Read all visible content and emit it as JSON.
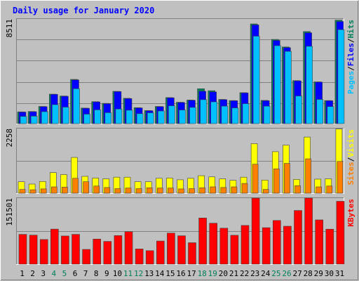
{
  "chart_data": {
    "type": "bar",
    "title": "Daily usage for January 2020",
    "categories": [
      "1",
      "2",
      "3",
      "4",
      "5",
      "6",
      "7",
      "8",
      "9",
      "10",
      "11",
      "12",
      "13",
      "14",
      "15",
      "16",
      "17",
      "18",
      "19",
      "20",
      "21",
      "22",
      "23",
      "24",
      "25",
      "26",
      "27",
      "28",
      "29",
      "30",
      "31"
    ],
    "weekend_days": [
      4,
      5,
      11,
      12,
      18,
      19,
      25,
      26
    ],
    "panels": [
      {
        "id": "hits-files-pages",
        "ymax": 8511,
        "ymax_label": "8511",
        "axis_labels": [
          "Pages",
          "/",
          "Files",
          "/",
          "Hits"
        ],
        "series": [
          {
            "name": "Hits",
            "color": "#00805c",
            "values": [
              960,
              990,
              1400,
              2400,
              2250,
              3600,
              1270,
              1790,
              1650,
              2630,
              2060,
              1300,
              1070,
              1400,
              2120,
              1740,
              1920,
              2840,
              2680,
              1970,
              1880,
              2520,
              8110,
              1890,
              6850,
              6240,
              3500,
              7490,
              3400,
              1880,
              8420
            ]
          },
          {
            "name": "Files",
            "color": "#0000ff",
            "values": [
              940,
              970,
              1380,
              2380,
              2230,
              3560,
              1250,
              1770,
              1630,
              2610,
              2040,
              1280,
              1050,
              1380,
              2100,
              1720,
              1900,
              2640,
              2580,
              1950,
              1860,
              2500,
              8030,
              1870,
              6770,
              6180,
              3480,
              7390,
              3380,
              1860,
              8310
            ]
          },
          {
            "name": "Pages",
            "color": "#00c0ff",
            "values": [
              590,
              610,
              970,
              1540,
              1340,
              2840,
              770,
              1120,
              890,
              1190,
              1090,
              810,
              880,
              1030,
              1450,
              1110,
              1320,
              1950,
              1770,
              1420,
              1280,
              1620,
              7110,
              1420,
              6340,
              5880,
              2250,
              6290,
              1970,
              1390,
              7640
            ]
          }
        ]
      },
      {
        "id": "visits-sites",
        "ymax": 2258,
        "ymax_label": "2258",
        "axis_labels": [
          "Sites",
          "/",
          "Visits"
        ],
        "series": [
          {
            "name": "Visits",
            "color": "#ffff00",
            "values": [
              400,
              320,
              410,
              720,
              650,
              1250,
              590,
              530,
              500,
              560,
              560,
              400,
              400,
              520,
              530,
              470,
              520,
              610,
              570,
              500,
              450,
              560,
              1730,
              460,
              1450,
              1680,
              480,
              1960,
              490,
              500,
              2240
            ]
          },
          {
            "name": "Sites",
            "color": "#ff8000",
            "values": [
              130,
              120,
              150,
              220,
              210,
              520,
              400,
              250,
              200,
              160,
              180,
              160,
              190,
              180,
              180,
              150,
              160,
              190,
              220,
              200,
              220,
              340,
              1010,
              130,
              850,
              1040,
              260,
              1200,
              220,
              250,
              1110
            ]
          }
        ]
      },
      {
        "id": "kbytes",
        "ymax": 151501,
        "ymax_label": "151501",
        "axis_labels": [
          "KBytes"
        ],
        "series": [
          {
            "name": "KBytes",
            "color": "#ff0000",
            "values": [
              68300,
              66500,
              56600,
              80500,
              64700,
              68300,
              33900,
              57500,
              52200,
              65600,
              74500,
              34800,
              30900,
              53000,
              71200,
              65100,
              49200,
              105900,
              94000,
              82600,
              66300,
              88800,
              151500,
              83700,
              100300,
              87100,
              123100,
              151500,
              101600,
              80200,
              144300
            ]
          }
        ]
      }
    ],
    "grid": true,
    "legend": "right-side vertical labels"
  }
}
